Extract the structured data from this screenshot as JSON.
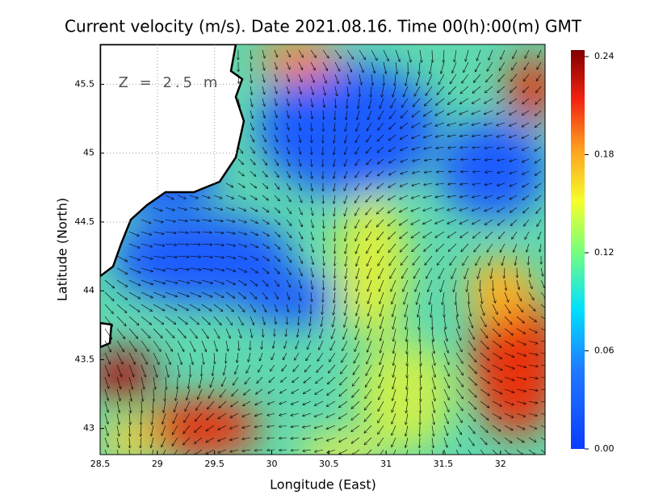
{
  "title": "Current velocity (m/s). Date 2021.08.16. Time 00(h):00(m) GMT",
  "depth_label": "Z = 2.5 m",
  "x_label": "Longitude (East)",
  "y_label": "Latitude (North)",
  "xlim": [
    28.5,
    32.39
  ],
  "ylim": [
    42.81,
    45.79
  ],
  "xticks": [
    28.5,
    29,
    29.5,
    30,
    30.5,
    31,
    31.5,
    32
  ],
  "yticks": [
    43,
    43.5,
    44,
    44.5,
    45,
    45.5
  ],
  "colorbar": {
    "lim": [
      0,
      0.244
    ],
    "ticks": [
      {
        "value": 0,
        "label": "0.00"
      },
      {
        "value": 0.06,
        "label": "0.06"
      },
      {
        "value": 0.12,
        "label": "0.12"
      },
      {
        "value": 0.18,
        "label": "0.18"
      },
      {
        "value": 0.24,
        "label": "0.24"
      }
    ]
  }
}
